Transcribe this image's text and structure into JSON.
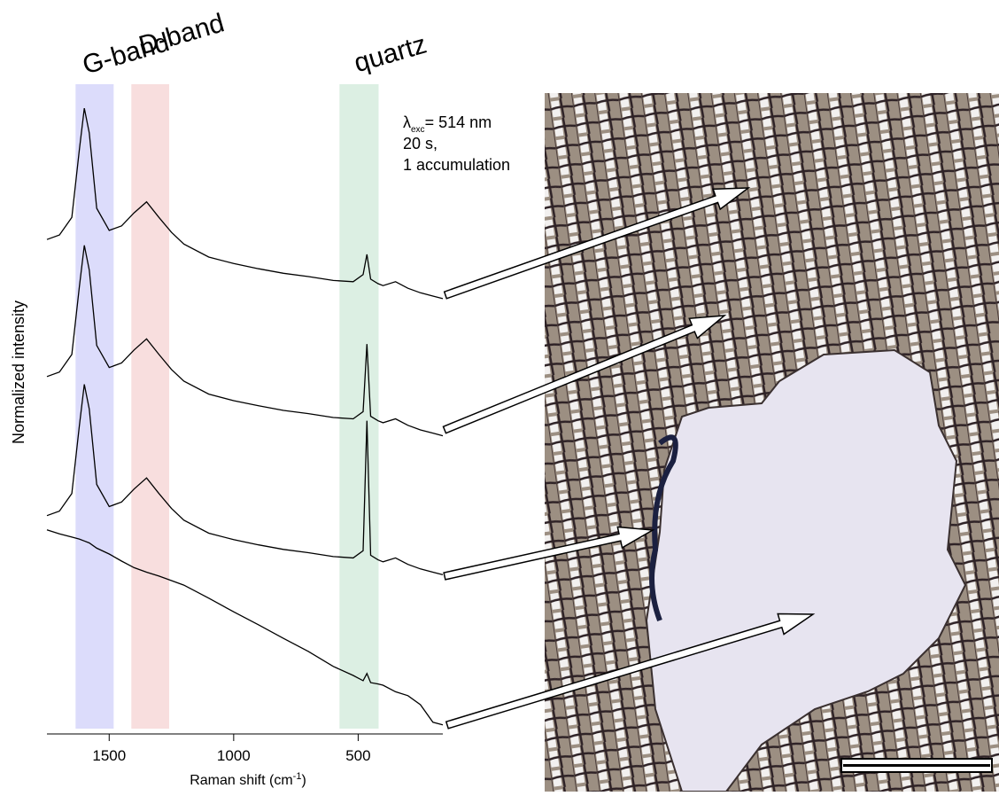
{
  "chart_data": {
    "type": "line",
    "xlabel": {
      "text": "Raman shift (cm",
      "sup": "-1",
      "end": ")"
    },
    "ylabel": "Normalized intensity",
    "xlim": [
      1750,
      160
    ],
    "ylim": [
      0,
      100
    ],
    "xticks": [
      1500,
      1000,
      500
    ],
    "x": [
      1750,
      1700,
      1650,
      1620,
      1600,
      1580,
      1550,
      1500,
      1450,
      1400,
      1350,
      1300,
      1250,
      1200,
      1100,
      1000,
      900,
      800,
      700,
      600,
      520,
      480,
      465,
      450,
      420,
      400,
      350,
      300,
      250,
      200,
      160
    ],
    "series": [
      {
        "color": "#000000",
        "values": [
          76.1,
          76.8,
          79.5,
          89.8,
          96.3,
          92.5,
          80.9,
          77.5,
          78.2,
          80.2,
          81.9,
          79.5,
          77.2,
          75.4,
          73.4,
          72.4,
          71.6,
          70.9,
          70.4,
          69.8,
          69.6,
          70.7,
          73.8,
          70.0,
          69.3,
          69.0,
          69.6,
          68.6,
          67.9,
          67.4,
          67.0
        ]
      },
      {
        "color": "#000000",
        "values": [
          55.0,
          55.7,
          58.4,
          68.7,
          75.2,
          71.4,
          59.8,
          56.4,
          57.1,
          59.1,
          60.8,
          58.4,
          56.1,
          54.3,
          52.3,
          51.3,
          50.5,
          49.8,
          49.3,
          48.7,
          48.5,
          49.6,
          60.0,
          48.9,
          48.2,
          47.9,
          48.5,
          47.5,
          46.8,
          46.3,
          45.9
        ]
      },
      {
        "color": "#000000",
        "values": [
          33.6,
          34.3,
          37.0,
          47.3,
          53.8,
          50.0,
          38.4,
          35.0,
          35.7,
          37.7,
          39.4,
          37.0,
          34.7,
          32.9,
          30.9,
          29.9,
          29.1,
          28.4,
          27.9,
          27.3,
          27.1,
          28.2,
          48.2,
          27.5,
          26.8,
          26.5,
          27.1,
          26.1,
          25.4,
          24.9,
          24.5
        ]
      },
      {
        "color": "#000000",
        "values": [
          31.4,
          30.8,
          30.3,
          30.0,
          29.7,
          29.4,
          28.6,
          27.7,
          26.6,
          25.6,
          24.9,
          24.3,
          23.6,
          22.9,
          20.9,
          18.8,
          16.8,
          14.7,
          12.7,
          10.4,
          9.0,
          8.2,
          9.3,
          7.9,
          7.7,
          7.5,
          6.5,
          5.9,
          4.5,
          1.8,
          1.4
        ]
      }
    ],
    "bands": [
      {
        "label": "G-band",
        "range": [
          1635,
          1482
        ],
        "color": "#dcdcfb"
      },
      {
        "label": "D-band",
        "range": [
          1411,
          1259
        ],
        "color": "#f8dede"
      },
      {
        "label": "quartz",
        "range": [
          575,
          418
        ],
        "color": "#dcefe3"
      }
    ],
    "notes": [
      {
        "symbol": "λ",
        "sub": "exc",
        "text": "= 514 nm"
      },
      {
        "text": "20 s,"
      },
      {
        "text": "1 accumulation"
      }
    ]
  }
}
